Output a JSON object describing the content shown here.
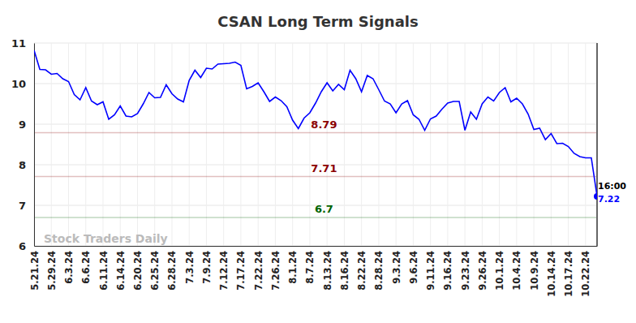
{
  "chart_data": {
    "type": "line",
    "title": "CSAN Long Term Signals",
    "categories": [
      "5.21.24",
      null,
      null,
      "5.29.24",
      null,
      null,
      "6.3.24",
      null,
      null,
      "6.6.24",
      null,
      null,
      "6.11.24",
      null,
      null,
      "6.14.24",
      null,
      null,
      "6.20.24",
      null,
      null,
      "6.25.24",
      null,
      null,
      "6.28.24",
      null,
      null,
      "7.3.24",
      null,
      null,
      "7.9.24",
      null,
      null,
      "7.12.24",
      null,
      null,
      "7.17.24",
      null,
      null,
      "7.22.24",
      null,
      null,
      "7.26.24",
      null,
      null,
      "8.1.24",
      null,
      null,
      "8.7.24",
      null,
      null,
      "8.13.24",
      null,
      null,
      "8.16.24",
      null,
      null,
      "8.22.24",
      null,
      null,
      "8.28.24",
      null,
      null,
      "9.3.24",
      null,
      null,
      "9.6.24",
      null,
      null,
      "9.11.24",
      null,
      null,
      "9.16.24",
      null,
      null,
      "9.23.24",
      null,
      null,
      "9.26.24",
      null,
      null,
      "10.1.24",
      null,
      null,
      "10.4.24",
      null,
      null,
      "10.9.24",
      null,
      null,
      "10.14.24",
      null,
      null,
      "10.17.24",
      null,
      null,
      "10.22.24",
      null,
      null
    ],
    "values": [
      10.82,
      10.35,
      10.34,
      10.23,
      10.25,
      10.12,
      10.05,
      9.73,
      9.6,
      9.9,
      9.57,
      9.48,
      9.55,
      9.12,
      9.23,
      9.45,
      9.2,
      9.18,
      9.26,
      9.5,
      9.78,
      9.65,
      9.66,
      9.97,
      9.75,
      9.62,
      9.55,
      10.08,
      10.33,
      10.15,
      10.38,
      10.36,
      10.48,
      10.49,
      10.5,
      10.53,
      10.45,
      9.87,
      9.93,
      10.02,
      9.8,
      9.56,
      9.67,
      9.58,
      9.43,
      9.1,
      8.89,
      9.15,
      9.28,
      9.52,
      9.8,
      10.02,
      9.82,
      9.98,
      9.85,
      10.33,
      10.12,
      9.8,
      10.2,
      10.12,
      9.85,
      9.57,
      9.5,
      9.28,
      9.5,
      9.58,
      9.23,
      9.12,
      8.85,
      9.13,
      9.2,
      9.37,
      9.52,
      9.56,
      9.56,
      8.85,
      9.3,
      9.12,
      9.5,
      9.67,
      9.57,
      9.78,
      9.9,
      9.55,
      9.64,
      9.5,
      9.25,
      8.87,
      8.9,
      8.62,
      8.77,
      8.52,
      8.53,
      8.45,
      8.28,
      8.2,
      8.17,
      8.17,
      7.22
    ],
    "color": "#0000ff",
    "ylim": [
      6,
      11
    ],
    "yticks": [
      6,
      7,
      8,
      9,
      10,
      11
    ],
    "grid": true,
    "reference_lines": [
      {
        "value": 8.79,
        "label": "8.79",
        "color": "#8b0000"
      },
      {
        "value": 7.71,
        "label": "7.71",
        "color": "#8b0000"
      },
      {
        "value": 6.7,
        "label": "6.7",
        "color": "#006400"
      }
    ],
    "last_time": "16:00",
    "watermark": "Stock Traders Daily"
  }
}
